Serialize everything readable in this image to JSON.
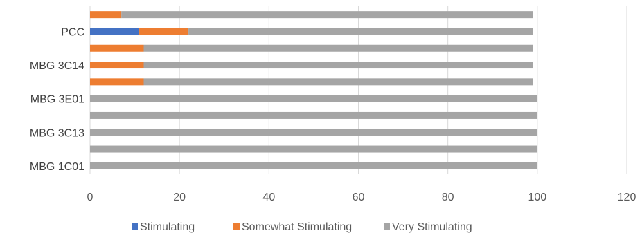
{
  "chart_data": {
    "type": "bar",
    "orientation": "horizontal",
    "stacked": true,
    "categories": [
      "MBG 1C01",
      "",
      "MBG 3C13",
      "",
      "MBG 3E01",
      "",
      "MBG 3C14",
      "",
      "PCC",
      ""
    ],
    "series": [
      {
        "name": "Stimulating",
        "color": "#4472C4",
        "values": [
          0,
          0,
          0,
          0,
          0,
          0,
          0,
          0,
          11,
          0
        ]
      },
      {
        "name": "Somewhat Stimulating",
        "color": "#ED7D31",
        "values": [
          0,
          0,
          0,
          0,
          0,
          12,
          12,
          12,
          11,
          7
        ]
      },
      {
        "name": "Very Stimulating",
        "color": "#A5A5A5",
        "values": [
          100,
          100,
          100,
          100,
          100,
          87,
          87,
          87,
          77,
          92
        ]
      }
    ],
    "xlim": [
      0,
      120
    ],
    "xticks": [
      "0",
      "20",
      "40",
      "60",
      "80",
      "100",
      "120"
    ],
    "grid": "vertical",
    "legend_position": "bottom"
  }
}
